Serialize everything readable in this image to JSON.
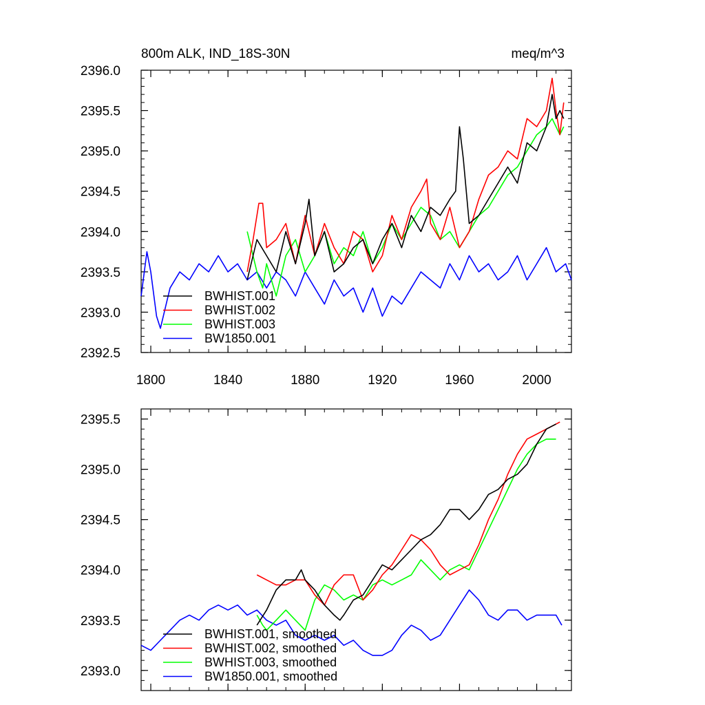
{
  "chart_data": [
    {
      "type": "line",
      "title_left": "800m ALK, IND_18S-30N",
      "title_right": "meq/m^3",
      "xlabel": "",
      "ylabel": "",
      "xlim": [
        1795,
        2018
      ],
      "ylim": [
        2392.5,
        2396.0
      ],
      "x_ticks": [
        1800,
        1840,
        1880,
        1920,
        1960,
        2000
      ],
      "y_ticks": [
        2392.5,
        2393.0,
        2393.5,
        2394.0,
        2394.5,
        2395.0,
        2395.5,
        2396.0
      ],
      "y_tick_labels": [
        "2392.5",
        "2393.0",
        "2393.5",
        "2394.0",
        "2394.5",
        "2395.0",
        "2395.5",
        "2396.0"
      ],
      "x_tick_labels": [
        "1800",
        "1840",
        "1880",
        "1920",
        "1960",
        "2000"
      ],
      "show_x_tick_labels": true,
      "legend_position": "lower-left",
      "series": [
        {
          "name": "BWHIST.001",
          "color": "#000000",
          "x": [
            1850,
            1855,
            1860,
            1865,
            1870,
            1875,
            1880,
            1882,
            1885,
            1890,
            1895,
            1900,
            1905,
            1910,
            1915,
            1920,
            1925,
            1930,
            1935,
            1940,
            1945,
            1950,
            1955,
            1958,
            1960,
            1962,
            1965,
            1970,
            1975,
            1980,
            1985,
            1990,
            1995,
            2000,
            2005,
            2008,
            2010,
            2012,
            2014
          ],
          "values": [
            2393.4,
            2393.9,
            2393.7,
            2393.5,
            2394.0,
            2393.6,
            2394.1,
            2394.4,
            2393.7,
            2394.0,
            2393.5,
            2393.6,
            2393.8,
            2393.9,
            2393.6,
            2393.9,
            2394.1,
            2393.8,
            2394.2,
            2394.0,
            2394.3,
            2394.2,
            2394.4,
            2394.5,
            2395.3,
            2394.9,
            2394.1,
            2394.2,
            2394.4,
            2394.6,
            2394.8,
            2394.6,
            2395.1,
            2395.0,
            2395.3,
            2395.7,
            2395.4,
            2395.5,
            2395.4
          ]
        },
        {
          "name": "BWHIST.002",
          "color": "#ff0000",
          "x": [
            1850,
            1853,
            1856,
            1858,
            1860,
            1865,
            1870,
            1875,
            1880,
            1885,
            1890,
            1895,
            1900,
            1905,
            1910,
            1915,
            1920,
            1925,
            1930,
            1935,
            1940,
            1943,
            1945,
            1950,
            1955,
            1960,
            1965,
            1970,
            1975,
            1980,
            1985,
            1990,
            1995,
            2000,
            2005,
            2008,
            2010,
            2012,
            2014
          ],
          "values": [
            2393.5,
            2393.9,
            2394.35,
            2394.35,
            2393.8,
            2393.9,
            2394.1,
            2393.6,
            2394.2,
            2393.7,
            2394.1,
            2393.8,
            2393.6,
            2394.0,
            2393.9,
            2393.5,
            2393.7,
            2394.2,
            2393.9,
            2394.3,
            2394.5,
            2394.65,
            2394.1,
            2393.9,
            2394.3,
            2393.8,
            2394.0,
            2394.4,
            2394.7,
            2394.8,
            2395.0,
            2394.9,
            2395.4,
            2395.3,
            2395.5,
            2395.9,
            2395.5,
            2395.2,
            2395.6
          ]
        },
        {
          "name": "BWHIST.003",
          "color": "#00ff00",
          "x": [
            1850,
            1855,
            1858,
            1860,
            1865,
            1870,
            1875,
            1880,
            1885,
            1890,
            1895,
            1900,
            1905,
            1910,
            1915,
            1920,
            1925,
            1930,
            1935,
            1940,
            1945,
            1950,
            1955,
            1960,
            1965,
            1970,
            1975,
            1980,
            1985,
            1990,
            1995,
            2000,
            2005,
            2008,
            2010,
            2012,
            2014
          ],
          "values": [
            2394.0,
            2393.5,
            2393.3,
            2393.6,
            2393.2,
            2393.7,
            2393.9,
            2393.5,
            2393.7,
            2394.0,
            2393.6,
            2393.8,
            2393.7,
            2394.0,
            2393.6,
            2393.8,
            2394.1,
            2393.9,
            2394.1,
            2394.3,
            2394.2,
            2393.9,
            2394.0,
            2393.8,
            2394.0,
            2394.2,
            2394.3,
            2394.5,
            2394.7,
            2394.8,
            2395.0,
            2395.2,
            2395.3,
            2395.4,
            2395.3,
            2395.2,
            2395.3
          ]
        },
        {
          "name": "BW1850.001",
          "color": "#0000ff",
          "x": [
            1795,
            1798,
            1800,
            1803,
            1805,
            1808,
            1810,
            1815,
            1820,
            1825,
            1830,
            1835,
            1840,
            1845,
            1850,
            1855,
            1860,
            1865,
            1870,
            1875,
            1880,
            1885,
            1890,
            1895,
            1900,
            1905,
            1910,
            1915,
            1920,
            1925,
            1930,
            1935,
            1940,
            1945,
            1950,
            1955,
            1960,
            1965,
            1970,
            1975,
            1980,
            1985,
            1990,
            1995,
            2000,
            2005,
            2010,
            2015,
            2018
          ],
          "values": [
            2393.2,
            2393.75,
            2393.5,
            2392.95,
            2392.8,
            2393.1,
            2393.3,
            2393.5,
            2393.4,
            2393.6,
            2393.5,
            2393.7,
            2393.5,
            2393.6,
            2393.4,
            2393.5,
            2393.3,
            2393.5,
            2393.4,
            2393.2,
            2393.5,
            2393.3,
            2393.1,
            2393.4,
            2393.2,
            2393.3,
            2393.0,
            2393.3,
            2392.95,
            2393.2,
            2393.1,
            2393.3,
            2393.5,
            2393.4,
            2393.3,
            2393.6,
            2393.4,
            2393.7,
            2393.5,
            2393.6,
            2393.4,
            2393.5,
            2393.7,
            2393.4,
            2393.6,
            2393.8,
            2393.5,
            2393.6,
            2393.4
          ]
        }
      ]
    },
    {
      "type": "line",
      "title_left": "",
      "title_right": "",
      "xlabel": "",
      "ylabel": "",
      "xlim": [
        1795,
        2018
      ],
      "ylim": [
        2392.8,
        2395.6
      ],
      "x_ticks": [
        1800,
        1840,
        1880,
        1920,
        1960,
        2000
      ],
      "y_ticks": [
        2393.0,
        2393.5,
        2394.0,
        2394.5,
        2395.0,
        2395.5
      ],
      "y_tick_labels": [
        "2393.0",
        "2393.5",
        "2394.0",
        "2394.5",
        "2395.0",
        "2395.5"
      ],
      "x_tick_labels": [],
      "show_x_tick_labels": false,
      "legend_position": "lower-left",
      "series": [
        {
          "name": "BWHIST.001, smoothed",
          "color": "#000000",
          "x": [
            1855,
            1860,
            1865,
            1870,
            1875,
            1878,
            1880,
            1885,
            1890,
            1895,
            1898,
            1900,
            1905,
            1910,
            1915,
            1920,
            1925,
            1930,
            1935,
            1940,
            1945,
            1950,
            1955,
            1958,
            1960,
            1965,
            1970,
            1975,
            1980,
            1985,
            1990,
            1995,
            2000,
            2005,
            2010
          ],
          "values": [
            2393.45,
            2393.6,
            2393.8,
            2393.9,
            2393.9,
            2394.0,
            2393.9,
            2393.8,
            2393.65,
            2393.55,
            2393.5,
            2393.55,
            2393.7,
            2393.75,
            2393.9,
            2394.05,
            2394.0,
            2394.1,
            2394.2,
            2394.3,
            2394.35,
            2394.45,
            2394.6,
            2394.6,
            2394.6,
            2394.5,
            2394.6,
            2394.75,
            2394.8,
            2394.9,
            2394.95,
            2395.05,
            2395.25,
            2395.4,
            2395.45
          ]
        },
        {
          "name": "BWHIST.002, smoothed",
          "color": "#ff0000",
          "x": [
            1855,
            1860,
            1865,
            1870,
            1875,
            1880,
            1885,
            1890,
            1895,
            1900,
            1905,
            1910,
            1915,
            1920,
            1925,
            1930,
            1935,
            1940,
            1945,
            1950,
            1955,
            1960,
            1965,
            1970,
            1975,
            1980,
            1985,
            1990,
            1995,
            2000,
            2005,
            2010,
            2012
          ],
          "values": [
            2393.95,
            2393.9,
            2393.85,
            2393.85,
            2393.9,
            2393.9,
            2393.75,
            2393.65,
            2393.85,
            2393.95,
            2393.95,
            2393.7,
            2393.8,
            2393.95,
            2394.05,
            2394.2,
            2394.35,
            2394.3,
            2394.2,
            2394.05,
            2393.95,
            2394.0,
            2394.05,
            2394.25,
            2394.5,
            2394.7,
            2394.95,
            2395.15,
            2395.3,
            2395.35,
            2395.4,
            2395.45,
            2395.47
          ]
        },
        {
          "name": "BWHIST.003, smoothed",
          "color": "#00ff00",
          "x": [
            1855,
            1858,
            1860,
            1865,
            1870,
            1875,
            1880,
            1885,
            1890,
            1895,
            1900,
            1905,
            1910,
            1915,
            1920,
            1925,
            1930,
            1935,
            1940,
            1945,
            1950,
            1955,
            1960,
            1965,
            1970,
            1975,
            1980,
            1985,
            1990,
            1995,
            2000,
            2005,
            2010
          ],
          "values": [
            2393.55,
            2393.45,
            2393.4,
            2393.5,
            2393.6,
            2393.5,
            2393.4,
            2393.7,
            2393.85,
            2393.8,
            2393.7,
            2393.75,
            2393.7,
            2393.85,
            2393.9,
            2393.85,
            2393.9,
            2393.95,
            2394.1,
            2394.0,
            2393.9,
            2394.0,
            2394.05,
            2394.0,
            2394.2,
            2394.4,
            2394.6,
            2394.8,
            2395.0,
            2395.15,
            2395.25,
            2395.3,
            2395.3
          ]
        },
        {
          "name": "BW1850.001, smoothed",
          "color": "#0000ff",
          "x": [
            1795,
            1800,
            1805,
            1810,
            1815,
            1820,
            1825,
            1830,
            1835,
            1840,
            1845,
            1850,
            1855,
            1860,
            1865,
            1870,
            1875,
            1880,
            1885,
            1890,
            1895,
            1900,
            1905,
            1910,
            1915,
            1920,
            1925,
            1930,
            1935,
            1940,
            1945,
            1950,
            1955,
            1960,
            1965,
            1970,
            1975,
            1980,
            1985,
            1990,
            1995,
            2000,
            2005,
            2010,
            2013
          ],
          "values": [
            2393.25,
            2393.2,
            2393.3,
            2393.4,
            2393.5,
            2393.55,
            2393.5,
            2393.6,
            2393.65,
            2393.6,
            2393.65,
            2393.55,
            2393.6,
            2393.5,
            2393.45,
            2393.5,
            2393.35,
            2393.3,
            2393.35,
            2393.3,
            2393.35,
            2393.25,
            2393.3,
            2393.2,
            2393.15,
            2393.15,
            2393.2,
            2393.35,
            2393.45,
            2393.4,
            2393.3,
            2393.35,
            2393.5,
            2393.65,
            2393.8,
            2393.7,
            2393.55,
            2393.5,
            2393.6,
            2393.6,
            2393.5,
            2393.55,
            2393.55,
            2393.55,
            2393.45
          ]
        }
      ]
    }
  ]
}
